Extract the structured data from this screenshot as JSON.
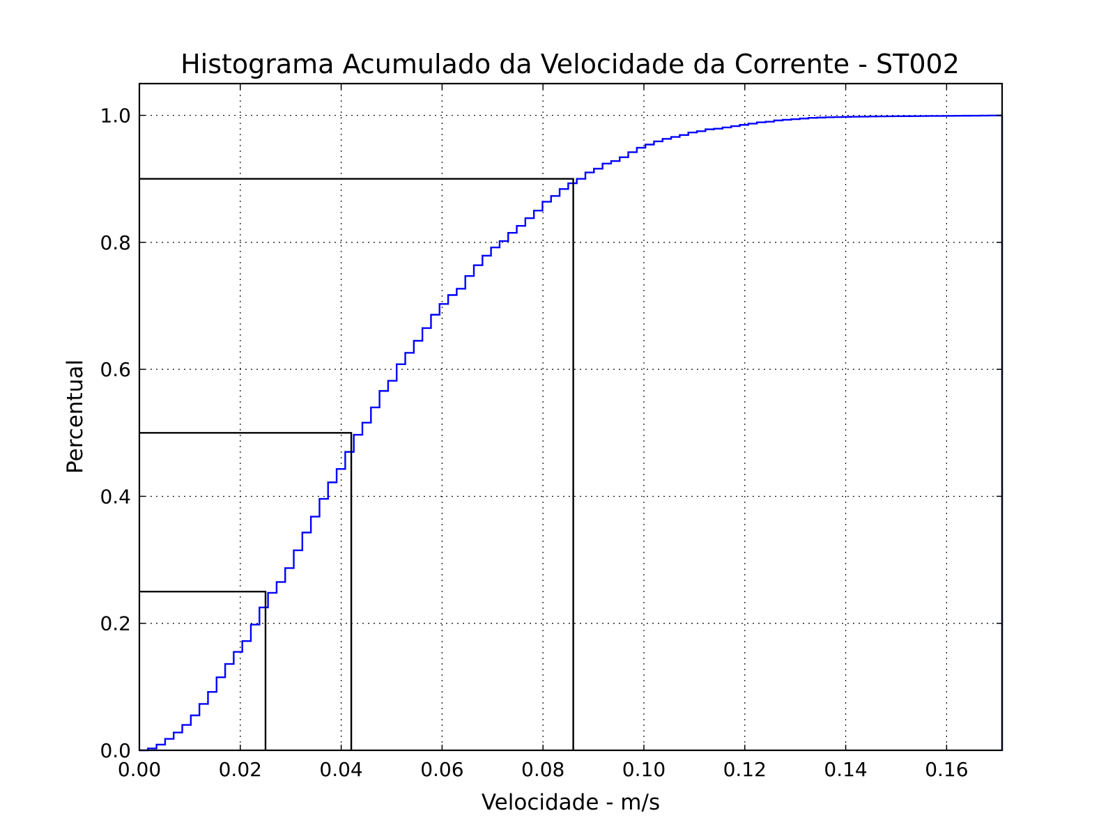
{
  "chart_data": {
    "type": "line",
    "title": "Histograma Acumulado da Velocidade da Corrente - ST002",
    "xlabel": "Velocidade - m/s",
    "ylabel": "Percentual",
    "xlim": [
      0.0,
      0.171
    ],
    "ylim": [
      0.0,
      1.05
    ],
    "xticks": [
      0.0,
      0.02,
      0.04,
      0.06,
      0.08,
      0.1,
      0.12,
      0.14,
      0.16
    ],
    "xtick_labels": [
      "0.00",
      "0.02",
      "0.04",
      "0.06",
      "0.08",
      "0.10",
      "0.12",
      "0.14",
      "0.16"
    ],
    "yticks": [
      0.0,
      0.2,
      0.4,
      0.6,
      0.8,
      1.0
    ],
    "ytick_labels": [
      "0.0",
      "0.2",
      "0.4",
      "0.6",
      "0.8",
      "1.0"
    ],
    "grid": true,
    "legend": "none",
    "series": [
      {
        "style": "step",
        "color": "#0000ff",
        "x": [
          0.0,
          0.0017,
          0.0034,
          0.0051,
          0.0068,
          0.0085,
          0.0102,
          0.0119,
          0.0136,
          0.0153,
          0.017,
          0.0187,
          0.0204,
          0.0221,
          0.0238,
          0.0255,
          0.0272,
          0.0289,
          0.0306,
          0.0323,
          0.034,
          0.0357,
          0.0374,
          0.0391,
          0.0408,
          0.0425,
          0.0442,
          0.0459,
          0.0476,
          0.0493,
          0.051,
          0.0527,
          0.0544,
          0.0561,
          0.0578,
          0.0595,
          0.0612,
          0.0629,
          0.0646,
          0.0663,
          0.068,
          0.0697,
          0.0714,
          0.0731,
          0.0748,
          0.0765,
          0.0782,
          0.0799,
          0.0816,
          0.0833,
          0.085,
          0.0867,
          0.0884,
          0.0901,
          0.0918,
          0.0935,
          0.0952,
          0.0969,
          0.0986,
          0.1003,
          0.102,
          0.1037,
          0.1054,
          0.1071,
          0.1088,
          0.1105,
          0.1122,
          0.1139,
          0.1156,
          0.1173,
          0.119,
          0.1207,
          0.1224,
          0.1241,
          0.1258,
          0.1275,
          0.1292,
          0.1309,
          0.1326,
          0.1343,
          0.136,
          0.1377,
          0.1394,
          0.1411,
          0.1428,
          0.1445,
          0.1462,
          0.1479,
          0.1496,
          0.1513,
          0.153,
          0.1547,
          0.1564,
          0.1581,
          0.1598,
          0.1615,
          0.1632,
          0.1649,
          0.1666,
          0.1683,
          0.17,
          0.171
        ],
        "y": [
          0.0,
          0.003,
          0.009,
          0.018,
          0.028,
          0.04,
          0.055,
          0.073,
          0.092,
          0.115,
          0.136,
          0.155,
          0.172,
          0.198,
          0.225,
          0.248,
          0.265,
          0.287,
          0.315,
          0.343,
          0.368,
          0.396,
          0.422,
          0.443,
          0.47,
          0.497,
          0.516,
          0.54,
          0.566,
          0.582,
          0.608,
          0.626,
          0.645,
          0.665,
          0.686,
          0.703,
          0.717,
          0.727,
          0.747,
          0.764,
          0.779,
          0.792,
          0.802,
          0.815,
          0.826,
          0.838,
          0.85,
          0.864,
          0.873,
          0.884,
          0.893,
          0.9,
          0.91,
          0.916,
          0.924,
          0.928,
          0.934,
          0.942,
          0.949,
          0.954,
          0.959,
          0.963,
          0.966,
          0.969,
          0.973,
          0.975,
          0.978,
          0.979,
          0.981,
          0.983,
          0.985,
          0.987,
          0.989,
          0.99,
          0.992,
          0.993,
          0.994,
          0.995,
          0.996,
          0.9965,
          0.997,
          0.9973,
          0.9976,
          0.9978,
          0.998,
          0.9982,
          0.9984,
          0.9985,
          0.9986,
          0.9987,
          0.9988,
          0.9989,
          0.999,
          0.9991,
          0.9992,
          0.9993,
          0.9994,
          0.9995,
          0.9996,
          0.9997,
          0.9998,
          1.0
        ]
      }
    ],
    "quantiles": [
      {
        "percentile": 0.25,
        "velocity": 0.025,
        "color": "#000000"
      },
      {
        "percentile": 0.5,
        "velocity": 0.042,
        "color": "#000000"
      },
      {
        "percentile": 0.9,
        "velocity": 0.086,
        "color": "#000000"
      }
    ]
  }
}
